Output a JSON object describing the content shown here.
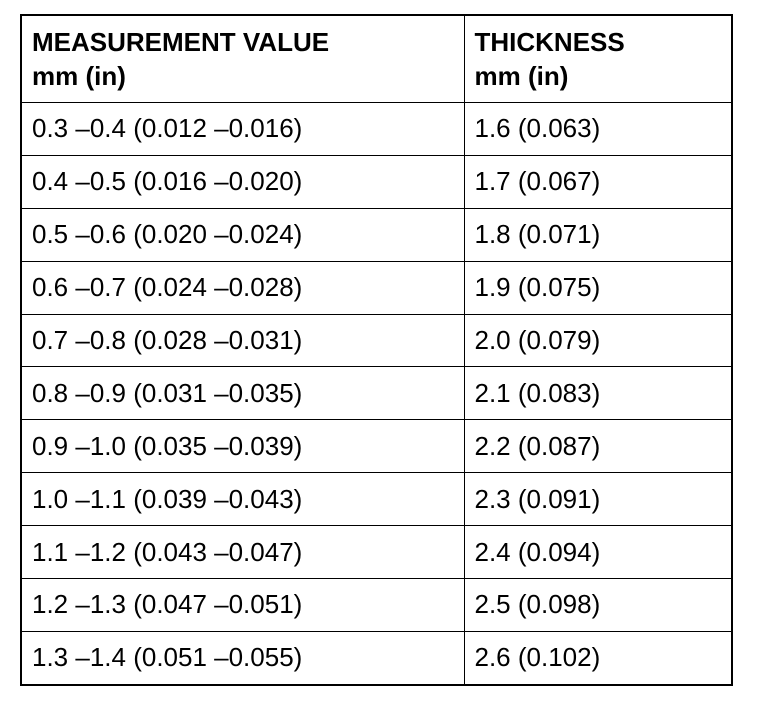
{
  "table": {
    "header": [
      [
        "MEASUREMENT VALUE",
        "mm (in)"
      ],
      [
        "THICKNESS",
        "mm (in)"
      ]
    ],
    "rows": [
      [
        "0.3 –0.4 (0.012 –0.016)",
        "1.6 (0.063)"
      ],
      [
        "0.4 –0.5 (0.016 –0.020)",
        "1.7 (0.067)"
      ],
      [
        "0.5 –0.6 (0.020 –0.024)",
        "1.8 (0.071)"
      ],
      [
        "0.6 –0.7 (0.024 –0.028)",
        "1.9 (0.075)"
      ],
      [
        "0.7 –0.8 (0.028 –0.031)",
        "2.0 (0.079)"
      ],
      [
        "0.8 –0.9 (0.031 –0.035)",
        "2.1 (0.083)"
      ],
      [
        "0.9 –1.0 (0.035 –0.039)",
        "2.2 (0.087)"
      ],
      [
        "1.0 –1.1 (0.039 –0.043)",
        "2.3 (0.091)"
      ],
      [
        "1.1 –1.2 (0.043 –0.047)",
        "2.4 (0.094)"
      ],
      [
        "1.2 –1.3 (0.047 –0.051)",
        "2.5 (0.098)"
      ],
      [
        "1.3 –1.4 (0.051 –0.055)",
        "2.6 (0.102)"
      ]
    ]
  }
}
